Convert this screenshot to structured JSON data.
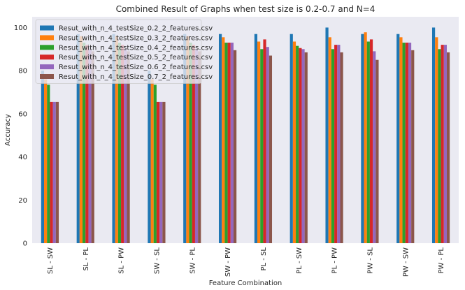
{
  "chart_data": {
    "type": "bar",
    "title": "Combined Result of Graphs when test size is 0.2-0.7 and N=4",
    "xlabel": "Feature Combination",
    "ylabel": "Accuracy",
    "ylim": [
      0,
      105
    ],
    "yticks": [
      0,
      20,
      40,
      60,
      80,
      100
    ],
    "grid": false,
    "legend_position": "top-left",
    "categories": [
      "SL - SW",
      "SL - PL",
      "SL - PW",
      "SW - SL",
      "SW - PL",
      "SW - PW",
      "PL - SL",
      "PL - SW",
      "PL - PW",
      "PW - SL",
      "PW - SW",
      "PW - PL"
    ],
    "series": [
      {
        "name": "Resut_with_n_4_testSize_0.2_2_features.csv",
        "color": "#1f77b4",
        "values": [
          80,
          97,
          97,
          80,
          97,
          97,
          97,
          97,
          100,
          97,
          97,
          100
        ]
      },
      {
        "name": "Resut_with_n_4_testSize_0.3_2_features.csv",
        "color": "#ff7f0e",
        "values": [
          76,
          96,
          96,
          76,
          96,
          95.5,
          93.5,
          93.5,
          95.5,
          97.8,
          95.5,
          95.5
        ]
      },
      {
        "name": "Resut_with_n_4_testSize_0.4_2_features.csv",
        "color": "#2ca02c",
        "values": [
          73.5,
          93,
          93,
          73.5,
          93,
          93,
          90,
          91.5,
          90,
          93.5,
          93,
          90
        ]
      },
      {
        "name": "Resut_with_n_4_testSize_0.5_2_features.csv",
        "color": "#d62728",
        "values": [
          65.5,
          92,
          92,
          65.5,
          92,
          93,
          94.5,
          90.5,
          92,
          94.5,
          93,
          92
        ]
      },
      {
        "name": "Resut_with_n_4_testSize_0.6_2_features.csv",
        "color": "#9467bd",
        "values": [
          65.5,
          90,
          90,
          65.5,
          90,
          93,
          91,
          90,
          92,
          89,
          93,
          92
        ]
      },
      {
        "name": "Resut_with_n_4_testSize_0.7_2_features.csv",
        "color": "#8c564b",
        "values": [
          65.5,
          89,
          89,
          65.5,
          89,
          89.5,
          87,
          88.5,
          88.5,
          85,
          89.5,
          88.5
        ]
      }
    ]
  }
}
